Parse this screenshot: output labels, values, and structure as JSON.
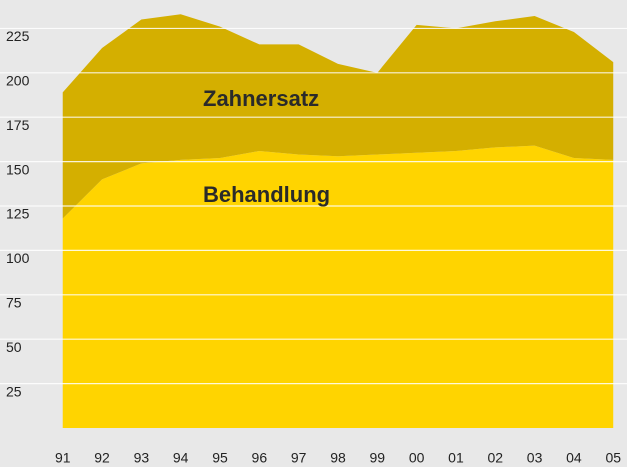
{
  "chart_data": {
    "type": "stacked-area",
    "x": [
      1991,
      1992,
      1993,
      1994,
      1995,
      1996,
      1997,
      1998,
      1999,
      2000,
      2001,
      2002,
      2003,
      2004,
      2005
    ],
    "series": [
      {
        "name": "Behandlung",
        "color": "#ffd400",
        "values": [
          118,
          140,
          149,
          151,
          152,
          156,
          154,
          153,
          154,
          155,
          156,
          158,
          159,
          152,
          151
        ]
      },
      {
        "name": "Zahnersatz",
        "color": "#d4af00",
        "values": [
          71,
          74,
          81,
          82,
          74,
          60,
          62,
          52,
          46,
          72,
          69,
          71,
          73,
          71,
          55
        ]
      }
    ],
    "xlim": [
      1990.6,
      2005.35
    ],
    "xticks": [
      {
        "value": 1991,
        "label": "91"
      },
      {
        "value": 1992,
        "label": "92"
      },
      {
        "value": 1993,
        "label": "93"
      },
      {
        "value": 1994,
        "label": "94"
      },
      {
        "value": 1995,
        "label": "95"
      },
      {
        "value": 1996,
        "label": "96"
      },
      {
        "value": 1997,
        "label": "97"
      },
      {
        "value": 1998,
        "label": "98"
      },
      {
        "value": 1999,
        "label": "99"
      },
      {
        "value": 2000,
        "label": "00"
      },
      {
        "value": 2001,
        "label": "01"
      },
      {
        "value": 2002,
        "label": "02"
      },
      {
        "value": 2003,
        "label": "03"
      },
      {
        "value": 2004,
        "label": "04"
      },
      {
        "value": 2005,
        "label": "05"
      }
    ],
    "ylim": [
      0,
      241
    ],
    "yticks": [
      25,
      50,
      75,
      100,
      125,
      150,
      175,
      200,
      225
    ],
    "grid": true
  }
}
